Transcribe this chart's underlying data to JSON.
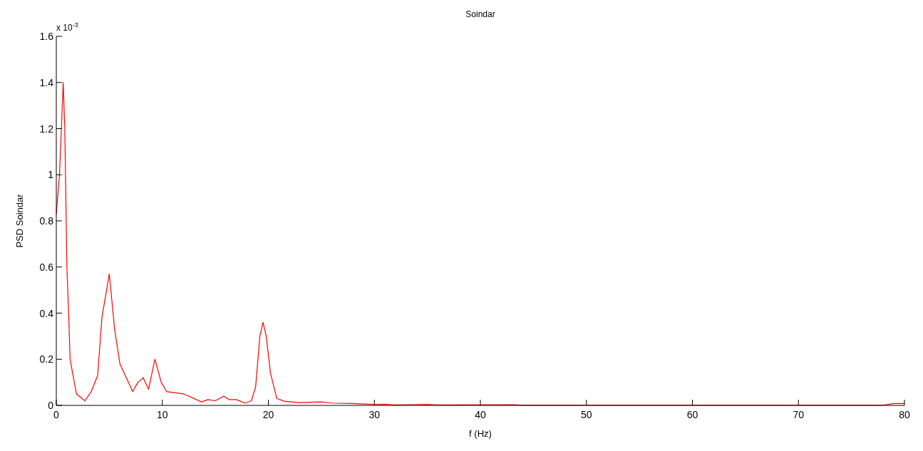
{
  "chart_data": {
    "type": "line",
    "title": "Soindar",
    "xlabel": "f (Hz)",
    "ylabel": "PSD Soindar",
    "annotations": [
      "x 10$^{-3}$"
    ],
    "xlim": [
      0,
      80
    ],
    "xticks": [
      0,
      10,
      20,
      30,
      40,
      50,
      60,
      70,
      80
    ],
    "ylim": [
      0,
      1.6
    ],
    "yticks": [
      0,
      0.2,
      0.4,
      0.6,
      0.8,
      1,
      1.2,
      1.4,
      1.6
    ],
    "grid": false,
    "series": [
      {
        "color": "#ff0000",
        "x": [
          0,
          0.3,
          0.5,
          0.65,
          0.8,
          1.0,
          1.2,
          1.3,
          1.9,
          2.7,
          3.3,
          3.9,
          4.3,
          5.0,
          5.5,
          6.0,
          7.2,
          7.7,
          8.2,
          8.7,
          9.3,
          9.9,
          10.4,
          12,
          13.7,
          14.3,
          15,
          15.8,
          16.3,
          17,
          17.8,
          18.4,
          18.8,
          19.2,
          19.5,
          19.8,
          20.2,
          20.8,
          21.5,
          23,
          25,
          26,
          28,
          30,
          31,
          32,
          35,
          36,
          43,
          44,
          78,
          79,
          80
        ],
        "values": [
          0.83,
          1.0,
          1.22,
          1.4,
          1.2,
          0.6,
          0.35,
          0.2,
          0.05,
          0.02,
          0.06,
          0.13,
          0.38,
          0.57,
          0.33,
          0.18,
          0.06,
          0.1,
          0.12,
          0.07,
          0.2,
          0.1,
          0.06,
          0.05,
          0.015,
          0.025,
          0.02,
          0.04,
          0.025,
          0.025,
          0.01,
          0.02,
          0.08,
          0.3,
          0.36,
          0.3,
          0.14,
          0.03,
          0.018,
          0.012,
          0.015,
          0.01,
          0.008,
          0.004,
          0.005,
          0.002,
          0.004,
          0.002,
          0.003,
          0.001,
          0.001,
          0.008,
          0.008
        ]
      }
    ]
  }
}
